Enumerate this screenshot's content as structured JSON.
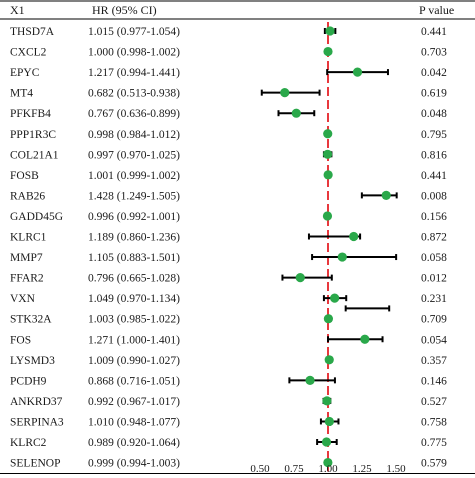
{
  "headers": {
    "gene": "X1",
    "hr": "HR (95% CI)",
    "p": "P value"
  },
  "colors": {
    "point": "#2aa84a",
    "ci": "#000000",
    "ref_line": "#e8383d",
    "rule": "#000000"
  },
  "chart_data": {
    "type": "forest",
    "reference_value": 1.0,
    "xlim": [
      0.38,
      1.62
    ],
    "xticks": [
      0.5,
      0.75,
      1.0,
      1.25,
      1.5
    ],
    "xtick_labels": [
      "0.50",
      "0.75",
      "1.00",
      "1.25",
      "1.50"
    ],
    "rows": [
      {
        "gene": "THSD7A",
        "hr": 1.015,
        "lo": 0.977,
        "hi": 1.054,
        "hr_text": "1.015 (0.977-1.054)",
        "p": "0.441"
      },
      {
        "gene": "CXCL2",
        "hr": 1.0,
        "lo": 0.998,
        "hi": 1.002,
        "hr_text": "1.000 (0.998-1.002)",
        "p": "0.703"
      },
      {
        "gene": "EPYC",
        "hr": 1.217,
        "lo": 0.994,
        "hi": 1.441,
        "hr_text": "1.217 (0.994-1.441)",
        "p": "0.042"
      },
      {
        "gene": "MT4",
        "hr": 0.682,
        "lo": 0.513,
        "hi": 0.938,
        "hr_text": "0.682 (0.513-0.938)",
        "p": "0.619"
      },
      {
        "gene": "PFKFB4",
        "hr": 0.767,
        "lo": 0.636,
        "hi": 0.899,
        "hr_text": "0.767 (0.636-0.899)",
        "p": "0.048"
      },
      {
        "gene": "PPP1R3C",
        "hr": 0.998,
        "lo": 0.984,
        "hi": 1.012,
        "hr_text": "0.998 (0.984-1.012)",
        "p": "0.795"
      },
      {
        "gene": "COL21A1",
        "hr": 0.997,
        "lo": 0.97,
        "hi": 1.025,
        "hr_text": "0.997 (0.970-1.025)",
        "p": "0.816"
      },
      {
        "gene": "FOSB",
        "hr": 1.001,
        "lo": 0.999,
        "hi": 1.002,
        "hr_text": "1.001 (0.999-1.002)",
        "p": "0.441"
      },
      {
        "gene": "RAB26",
        "hr": 1.428,
        "lo": 1.249,
        "hi": 1.505,
        "hr_text": "1.428 (1.249-1.505)",
        "p": "0.008"
      },
      {
        "gene": "GADD45G",
        "hr": 0.996,
        "lo": 0.992,
        "hi": 1.001,
        "hr_text": "0.996 (0.992-1.001)",
        "p": "0.156"
      },
      {
        "gene": "KLRC1",
        "hr": 1.189,
        "lo": 0.86,
        "hi": 1.236,
        "hr_text": "1.189 (0.860-1.236)",
        "p": "0.872"
      },
      {
        "gene": "MMP7",
        "hr": 1.105,
        "lo": 0.883,
        "hi": 1.501,
        "hr_text": "1.105 (0.883-1.501)",
        "p": "0.058"
      },
      {
        "gene": "FFAR2",
        "hr": 0.796,
        "lo": 0.665,
        "hi": 1.028,
        "hr_text": "0.796 (0.665-1.028)",
        "p": "0.012"
      },
      {
        "gene": "VXN",
        "hr": 1.049,
        "lo": 0.97,
        "hi": 1.134,
        "hr_text": "1.049 (0.970-1.134)",
        "p": "0.231"
      },
      {
        "gene": "STK32A",
        "hr": 1.003,
        "lo": 0.985,
        "hi": 1.022,
        "hr_text": "1.003 (0.985-1.022)",
        "p": "0.709"
      },
      {
        "gene": "FOS",
        "hr": 1.271,
        "lo": 1.0,
        "hi": 1.401,
        "hr_text": "1.271 (1.000-1.401)",
        "p": "0.054"
      },
      {
        "gene": "LYSMD3",
        "hr": 1.009,
        "lo": 0.99,
        "hi": 1.027,
        "hr_text": "1.009 (0.990-1.027)",
        "p": "0.357"
      },
      {
        "gene": "PCDH9",
        "hr": 0.868,
        "lo": 0.716,
        "hi": 1.051,
        "hr_text": "0.868 (0.716-1.051)",
        "p": "0.146"
      },
      {
        "gene": "ANKRD37",
        "hr": 0.992,
        "lo": 0.967,
        "hi": 1.017,
        "hr_text": "0.992 (0.967-1.017)",
        "p": "0.527"
      },
      {
        "gene": "SERPINA3",
        "hr": 1.01,
        "lo": 0.948,
        "hi": 1.077,
        "hr_text": "1.010 (0.948-1.077)",
        "p": "0.758"
      },
      {
        "gene": "KLRC2",
        "hr": 0.989,
        "lo": 0.92,
        "hi": 1.064,
        "hr_text": "0.989 (0.920-1.064)",
        "p": "0.775"
      },
      {
        "gene": "SELENOP",
        "hr": 0.999,
        "lo": 0.994,
        "hi": 1.003,
        "hr_text": "0.999 (0.994-1.003)",
        "p": "0.579"
      }
    ],
    "extra_segments": [
      {
        "lo": 1.13,
        "hi": 1.45,
        "between_rows": [
          "VXN",
          "STK32A"
        ]
      }
    ]
  }
}
